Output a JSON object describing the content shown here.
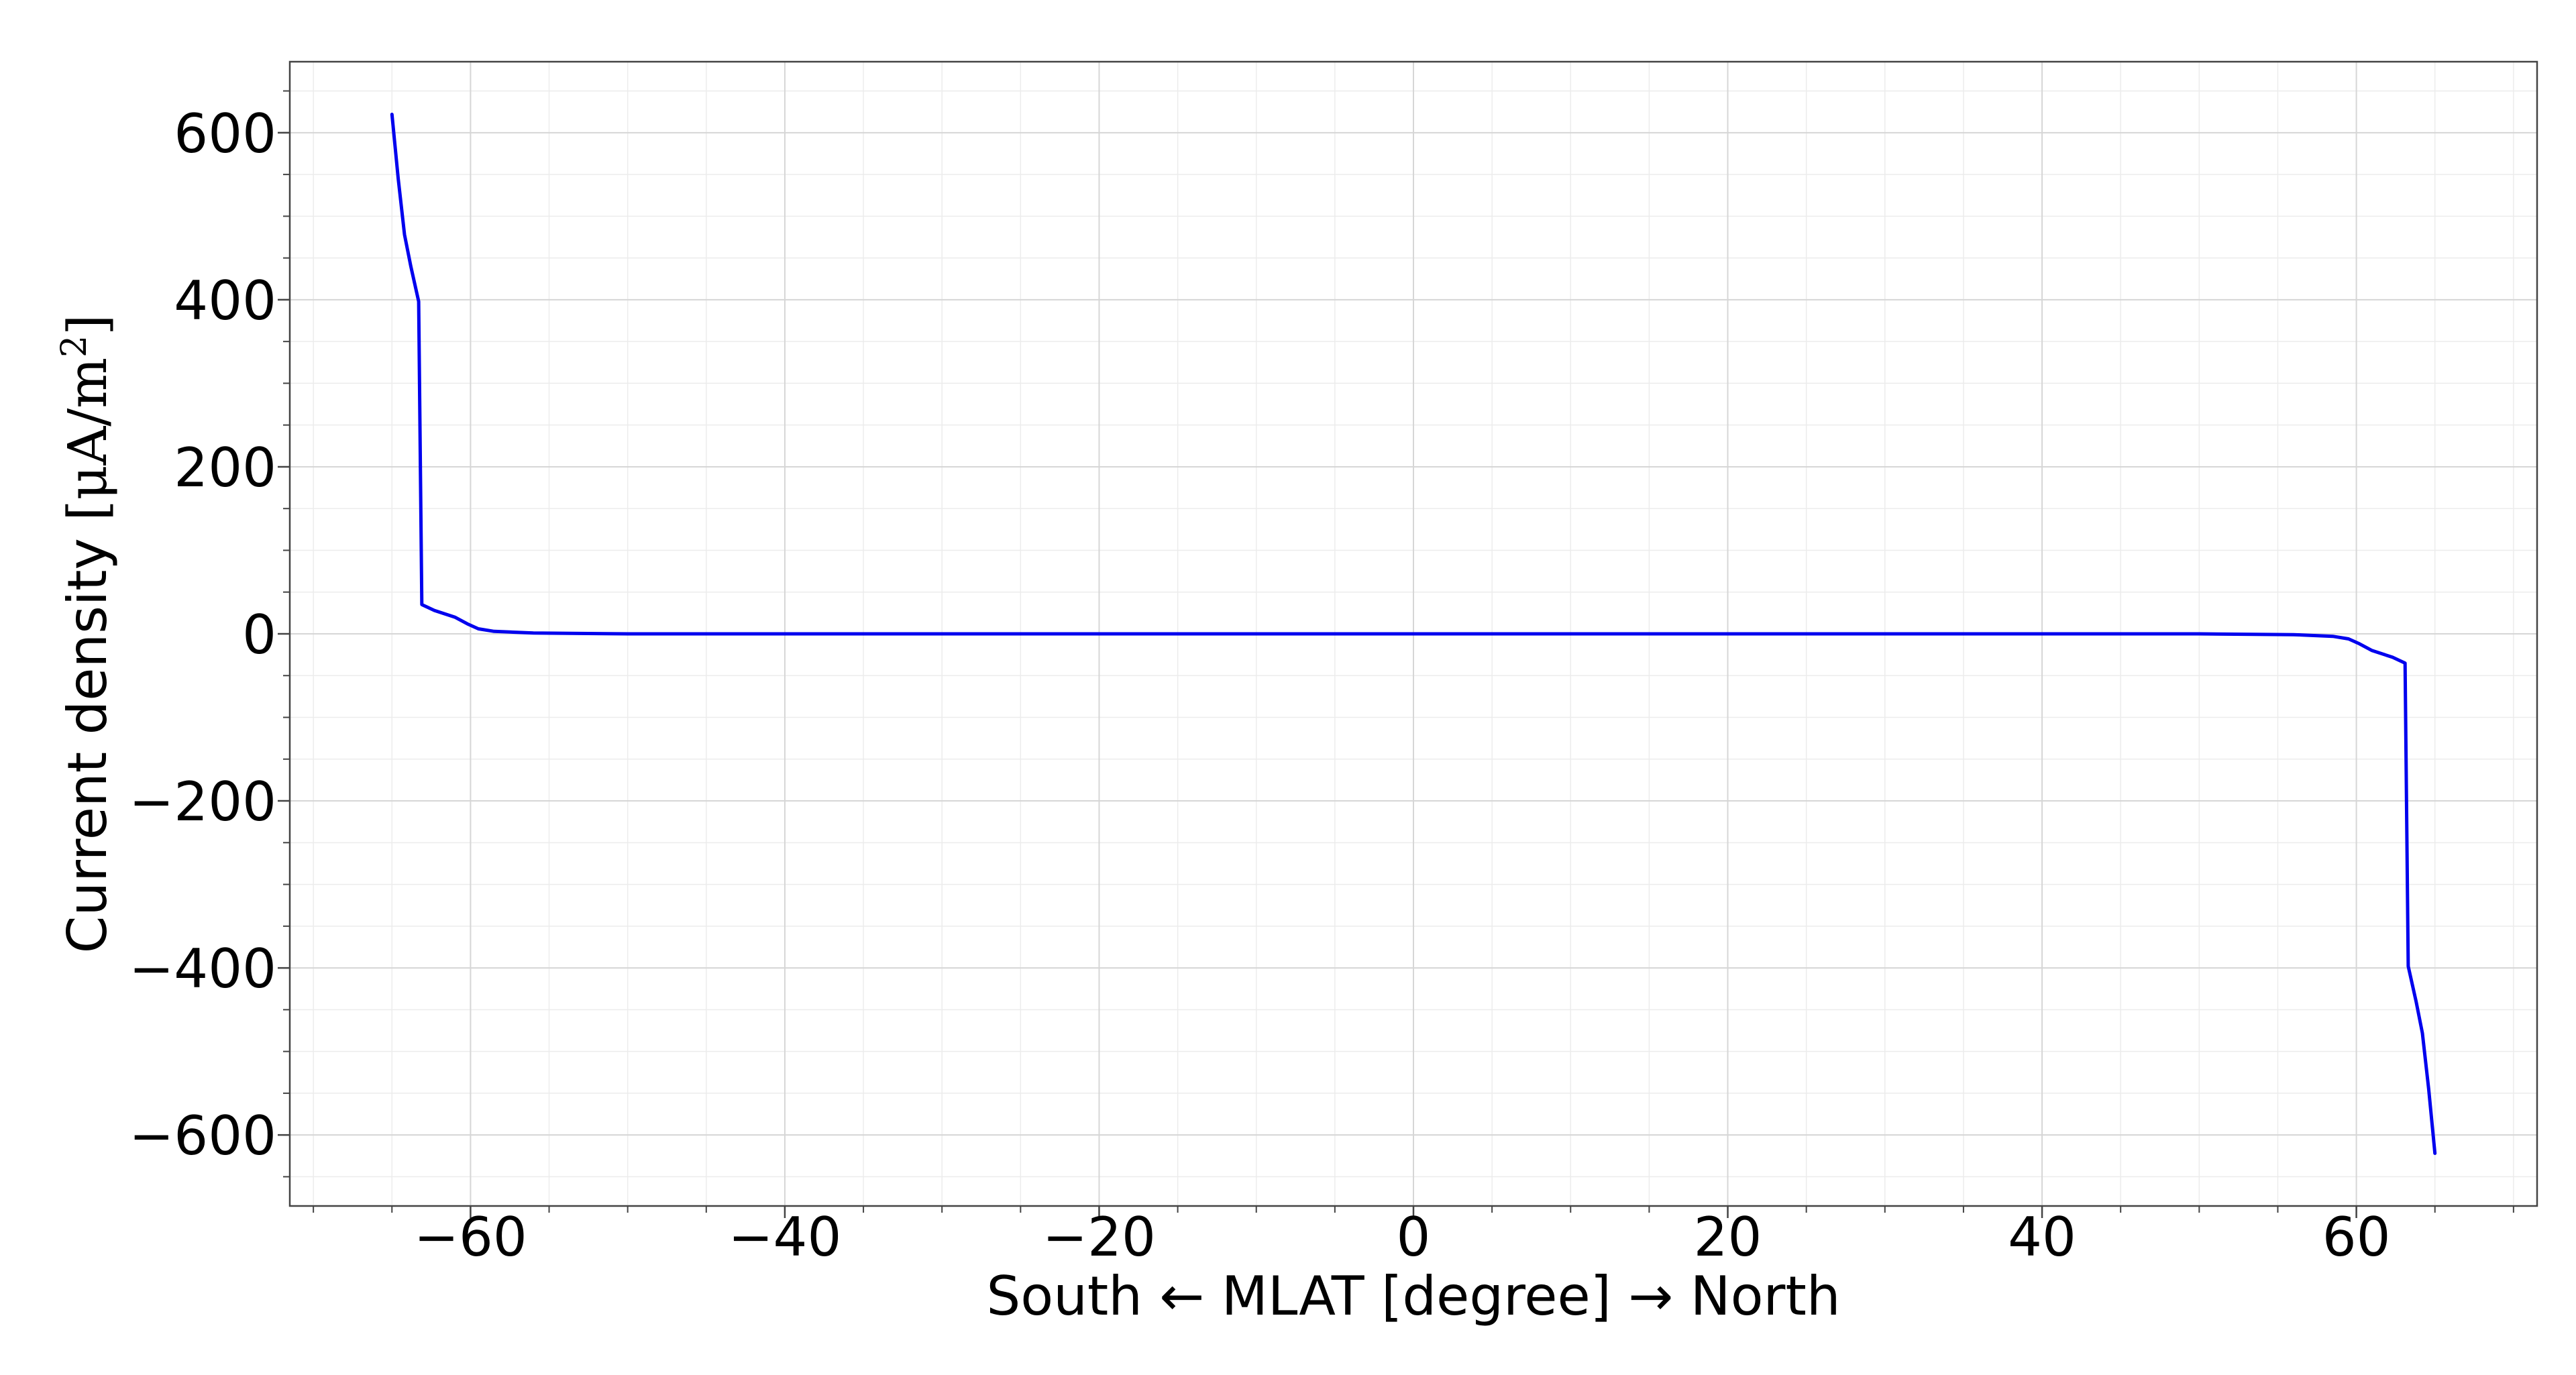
{
  "chart_data": {
    "type": "line",
    "xlabel": "South ← MLAT [degree] → North",
    "ylabel_text": "Current density ",
    "ylabel_unit": "[μA/m",
    "ylabel_sup": "2",
    "ylabel_close": "]",
    "xlim": [
      -71.5,
      71.5
    ],
    "ylim": [
      -685,
      685
    ],
    "xticks": [
      -60,
      -40,
      -20,
      0,
      20,
      40,
      60
    ],
    "xtick_labels": [
      "−60",
      "−40",
      "−20",
      "0",
      "20",
      "40",
      "60"
    ],
    "yticks": [
      -600,
      -400,
      -200,
      0,
      200,
      400,
      600
    ],
    "ytick_labels": [
      "−600",
      "−400",
      "−200",
      "0",
      "200",
      "400",
      "600"
    ],
    "x_minor_step": 5,
    "y_minor_step": 50,
    "grid": true,
    "legend": "none",
    "series": [
      {
        "color": "#0000ee",
        "x": [
          -65.0,
          -64.6,
          -64.2,
          -63.8,
          -63.3,
          -63.1,
          -62.3,
          -61.0,
          -60.2,
          -59.5,
          -58.5,
          -56.0,
          -50.0,
          -40.0,
          -20.0,
          0.0,
          20.0,
          40.0,
          50.0,
          56.0,
          58.5,
          59.5,
          60.2,
          61.0,
          62.3,
          63.1,
          63.3,
          63.8,
          64.2,
          64.6,
          65.0
        ],
        "y": [
          622,
          545,
          478,
          440,
          398,
          35,
          28,
          20,
          12,
          6,
          3,
          1,
          0,
          0,
          0,
          0,
          0,
          0,
          0,
          -1,
          -3,
          -6,
          -12,
          -20,
          -28,
          -35,
          -398,
          -440,
          -478,
          -545,
          -622
        ]
      }
    ]
  }
}
